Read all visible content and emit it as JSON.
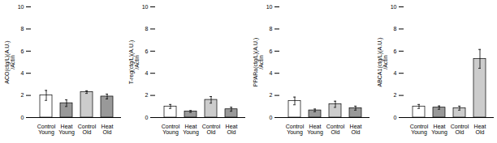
{
  "chart_data": [
    {
      "type": "bar",
      "ylabel": "ACO(ctg/L)(A.U.)\n/Actin",
      "categories": [
        "Control\nYoung",
        "Heat\nYoung",
        "Control\nOld",
        "Heat\nOld"
      ],
      "values": [
        2.0,
        1.3,
        2.3,
        1.9
      ],
      "errors": [
        0.45,
        0.3,
        0.12,
        0.22
      ],
      "colors": [
        "white",
        "#999999",
        "#cccccc",
        "#999999"
      ],
      "ylim": [
        0,
        10
      ],
      "yticks": [
        0,
        2,
        4,
        6,
        8,
        10
      ]
    },
    {
      "type": "bar",
      "ylabel": "T-reg(ctg/L)(A.U.)\n/Actin",
      "categories": [
        "Control\nYoung",
        "Heat\nYoung",
        "Control\nOld",
        "Heat\nOld"
      ],
      "values": [
        1.0,
        0.55,
        1.6,
        0.75
      ],
      "errors": [
        0.18,
        0.08,
        0.3,
        0.18
      ],
      "colors": [
        "white",
        "#999999",
        "#cccccc",
        "#999999"
      ],
      "ylim": [
        0,
        10
      ],
      "yticks": [
        0,
        2,
        4,
        6,
        8,
        10
      ]
    },
    {
      "type": "bar",
      "ylabel": "PPARa(ctg/L)(A.U.)\n/Actin",
      "categories": [
        "Control\nYoung",
        "Heat\nYoung",
        "Control\nOld",
        "Heat\nOld"
      ],
      "values": [
        1.5,
        0.65,
        1.2,
        0.85
      ],
      "errors": [
        0.35,
        0.12,
        0.28,
        0.18
      ],
      "colors": [
        "white",
        "#999999",
        "#cccccc",
        "#999999"
      ],
      "ylim": [
        0,
        10
      ],
      "yticks": [
        0,
        2,
        4,
        6,
        8,
        10
      ]
    },
    {
      "type": "bar",
      "ylabel": "ABCA1(ctg/L)(A.U.)\n/Actin",
      "categories": [
        "Control\nYoung",
        "Heat\nYoung",
        "Control\nOld",
        "Heat\nOld"
      ],
      "values": [
        1.0,
        0.9,
        0.85,
        5.3
      ],
      "errors": [
        0.18,
        0.15,
        0.18,
        0.85
      ],
      "colors": [
        "white",
        "#999999",
        "#cccccc",
        "#cccccc"
      ],
      "ylim": [
        0,
        10
      ],
      "yticks": [
        0,
        2,
        4,
        6,
        8,
        10
      ]
    }
  ]
}
